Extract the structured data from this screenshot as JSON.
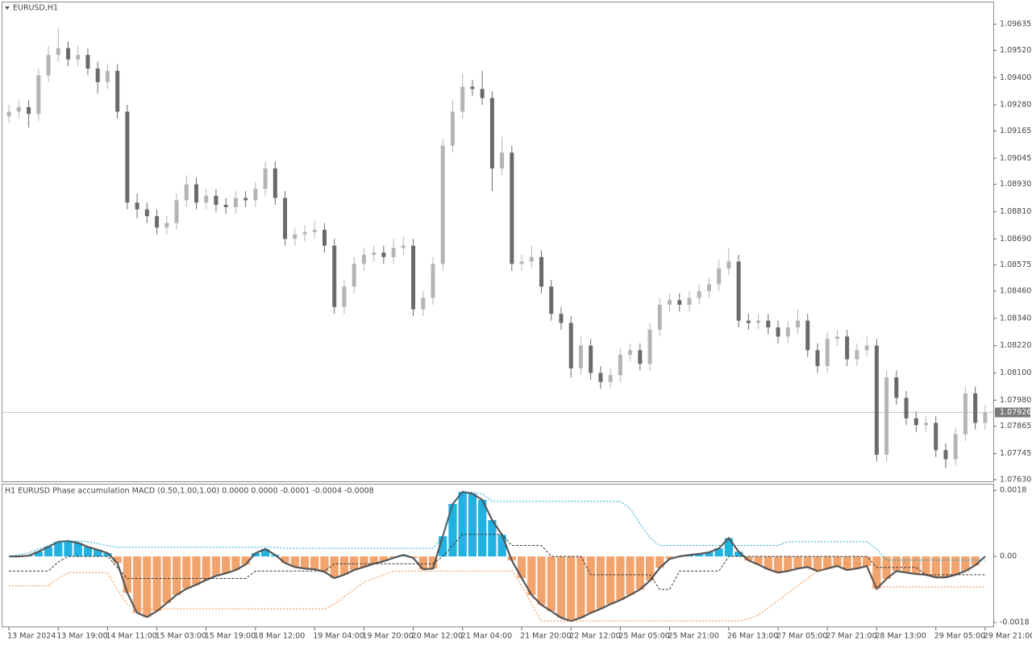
{
  "chart_data": [
    {
      "type": "candlestick",
      "title": "EURUSD,H1",
      "categories": [
        "13 Mar 2024",
        null,
        null,
        null,
        null,
        "13 Mar 19:00",
        null,
        null,
        null,
        null,
        "14 Mar 11:00",
        null,
        null,
        null,
        null,
        "15 Mar 03:00",
        null,
        null,
        null,
        null,
        "15 Mar 19:00",
        null,
        null,
        null,
        null,
        "18 Mar 12:00",
        null,
        null,
        null,
        null,
        null,
        "19 Mar 04:00",
        null,
        null,
        null,
        null,
        "19 Mar 20:00",
        null,
        null,
        null,
        null,
        "20 Mar 12:00",
        null,
        null,
        null,
        null,
        "21 Mar 04:00",
        null,
        null,
        null,
        null,
        null,
        "21 Mar 20:00",
        null,
        null,
        null,
        null,
        "22 Mar 12:00",
        null,
        null,
        null,
        null,
        "25 Mar 05:00",
        null,
        null,
        null,
        null,
        "25 Mar 21:00",
        null,
        null,
        null,
        null,
        null,
        "26 Mar 13:00",
        null,
        null,
        null,
        null,
        "27 Mar 05:00",
        null,
        null,
        null,
        null,
        "27 Mar 21:00",
        null,
        null,
        null,
        null,
        "28 Mar 13:00",
        null,
        null,
        null,
        null,
        null,
        "29 Mar 05:00",
        null,
        null,
        null,
        null,
        "29 Mar 21:00"
      ],
      "open": [
        1.0923,
        1.0925,
        1.0927,
        1.0924,
        1.0941,
        1.095,
        1.0953,
        1.0948,
        1.095,
        1.0944,
        1.0938,
        1.0943,
        1.0925,
        1.0885,
        1.0882,
        1.0879,
        1.0874,
        1.0876,
        1.0886,
        1.0893,
        1.0885,
        1.0888,
        1.0884,
        1.0883,
        1.0887,
        1.0886,
        1.0891,
        1.09,
        1.0887,
        1.0869,
        1.0871,
        1.0872,
        1.0873,
        1.0866,
        1.0839,
        1.0848,
        1.0858,
        1.0862,
        1.0863,
        1.0861,
        1.0865,
        1.0866,
        1.0838,
        1.0843,
        1.0858,
        1.091,
        1.0925,
        1.0936,
        1.0935,
        1.0931,
        1.09,
        1.0907,
        1.0858,
        1.0859,
        1.0861,
        1.0848,
        1.0836,
        1.0832,
        1.0812,
        1.0822,
        1.081,
        1.0806,
        1.0809,
        1.0818,
        1.082,
        1.0814,
        1.0829,
        1.084,
        1.0842,
        1.084,
        1.0843,
        1.0846,
        1.0849,
        1.0856,
        1.0859,
        1.0833,
        1.0832,
        1.0833,
        1.083,
        1.0826,
        1.083,
        1.0833,
        1.082,
        1.0813,
        1.0825,
        1.0826,
        1.0816,
        1.082,
        1.0822,
        1.0774,
        1.0808,
        1.0799,
        1.079,
        1.0787,
        1.0788,
        1.0776,
        1.0772,
        1.0783,
        1.0801,
        1.0788
      ],
      "high": [
        1.0928,
        1.093,
        1.093,
        1.0944,
        1.0954,
        1.0962,
        1.0956,
        1.0954,
        1.0953,
        1.0947,
        1.0946,
        1.0946,
        1.0928,
        1.0889,
        1.0885,
        1.0882,
        1.0879,
        1.0889,
        1.0897,
        1.0896,
        1.0891,
        1.0891,
        1.0887,
        1.089,
        1.089,
        1.0894,
        1.0903,
        1.0903,
        1.089,
        1.0874,
        1.0875,
        1.0877,
        1.0876,
        1.0869,
        1.0851,
        1.0861,
        1.0865,
        1.0866,
        1.0866,
        1.0869,
        1.087,
        1.0869,
        1.0846,
        1.0861,
        1.0913,
        1.093,
        1.0942,
        1.0939,
        1.0943,
        1.0934,
        1.0914,
        1.091,
        1.0862,
        1.0866,
        1.0864,
        1.0851,
        1.0839,
        1.0835,
        1.0826,
        1.0825,
        1.0813,
        1.0812,
        1.0821,
        1.0823,
        1.0823,
        1.0832,
        1.0843,
        1.0845,
        1.0845,
        1.0846,
        1.0849,
        1.0852,
        1.086,
        1.0865,
        1.0862,
        1.0836,
        1.0836,
        1.0836,
        1.0833,
        1.0833,
        1.0838,
        1.0836,
        1.0823,
        1.0828,
        1.0829,
        1.0829,
        1.0823,
        1.0826,
        1.0825,
        1.0811,
        1.0811,
        1.0802,
        1.0793,
        1.0791,
        1.0791,
        1.0779,
        1.0786,
        1.0804,
        1.0804,
        1.0796
      ],
      "low": [
        1.092,
        1.0922,
        1.0918,
        1.0921,
        1.0938,
        1.0947,
        1.0945,
        1.0945,
        1.0941,
        1.0933,
        1.0935,
        1.0922,
        1.0882,
        1.0878,
        1.0876,
        1.0871,
        1.0871,
        1.0873,
        1.0883,
        1.0882,
        1.0882,
        1.0881,
        1.088,
        1.088,
        1.0883,
        1.0883,
        1.0888,
        1.0884,
        1.0866,
        1.0866,
        1.0868,
        1.0869,
        1.0863,
        1.0836,
        1.0836,
        1.0845,
        1.0855,
        1.0859,
        1.0858,
        1.0858,
        1.0862,
        1.0835,
        1.0835,
        1.084,
        1.0855,
        1.0907,
        1.0922,
        1.0932,
        1.0928,
        1.089,
        1.0897,
        1.0855,
        1.0855,
        1.0856,
        1.0845,
        1.0833,
        1.0829,
        1.0808,
        1.0809,
        1.0807,
        1.0803,
        1.0803,
        1.0806,
        1.0815,
        1.0811,
        1.0811,
        1.0826,
        1.0837,
        1.0837,
        1.0837,
        1.084,
        1.0843,
        1.0846,
        1.0853,
        1.083,
        1.0829,
        1.0829,
        1.0827,
        1.0823,
        1.0823,
        1.0827,
        1.0817,
        1.081,
        1.081,
        1.0822,
        1.0813,
        1.0813,
        1.0817,
        1.0771,
        1.0771,
        1.0796,
        1.0787,
        1.0784,
        1.0784,
        1.0773,
        1.0768,
        1.0769,
        1.078,
        1.0785,
        1.0785
      ],
      "close": [
        1.0925,
        1.0927,
        1.0924,
        1.0941,
        1.095,
        1.0953,
        1.0948,
        1.095,
        1.0944,
        1.0938,
        1.0943,
        1.0925,
        1.0885,
        1.0882,
        1.0879,
        1.0874,
        1.0876,
        1.0886,
        1.0893,
        1.0885,
        1.0888,
        1.0884,
        1.0883,
        1.0887,
        1.0886,
        1.0891,
        1.09,
        1.0887,
        1.0869,
        1.0871,
        1.0872,
        1.0873,
        1.0866,
        1.0839,
        1.0848,
        1.0858,
        1.0862,
        1.0863,
        1.0861,
        1.0865,
        1.0866,
        1.0838,
        1.0843,
        1.0858,
        1.091,
        1.0925,
        1.0936,
        1.0935,
        1.0931,
        1.09,
        1.0907,
        1.0858,
        1.0859,
        1.0861,
        1.0848,
        1.0836,
        1.0832,
        1.0812,
        1.0822,
        1.081,
        1.0806,
        1.0809,
        1.0818,
        1.082,
        1.0814,
        1.0829,
        1.084,
        1.0842,
        1.084,
        1.0843,
        1.0846,
        1.0849,
        1.0856,
        1.0859,
        1.0833,
        1.0832,
        1.0833,
        1.083,
        1.0826,
        1.083,
        1.0833,
        1.082,
        1.0813,
        1.0825,
        1.0826,
        1.0816,
        1.082,
        1.0822,
        1.0774,
        1.0808,
        1.0799,
        1.079,
        1.0787,
        1.0788,
        1.0776,
        1.0772,
        1.0783,
        1.0801,
        1.0788,
        1.07926
      ],
      "up_color": "#b4b4b4",
      "down_color": "#6a6a6a",
      "ylim": [
        1.07619,
        1.09731
      ],
      "yticks": [
        1.09635,
        {
          "value": 1.0952,
          "label": "1.09520"
        },
        {
          "value": 1.094,
          "label": "1.09400"
        },
        {
          "value": 1.0928,
          "label": "1.09280"
        },
        1.09165,
        1.09045,
        {
          "value": 1.0893,
          "label": "1.08930"
        },
        {
          "value": 1.0881,
          "label": "1.08810"
        },
        {
          "value": 1.0869,
          "label": "1.08690"
        },
        1.08575,
        {
          "value": 1.0846,
          "label": "1.08460"
        },
        {
          "value": 1.0834,
          "label": "1.08340"
        },
        {
          "value": 1.0822,
          "label": "1.08220"
        },
        {
          "value": 1.081,
          "label": "1.08100"
        },
        {
          "value": 1.0798,
          "label": "1.07980"
        },
        1.07865,
        1.07745,
        {
          "value": 1.0763,
          "label": "1.07630"
        }
      ],
      "grid": false
    },
    {
      "type": "macd",
      "title": "H1 EURUSD Phase accumulation MACD (0.50,1.00,1.00) 0.0000 0.0000 -0.0001 -0.0004 -0.0008",
      "ylim": [
        -0.00193,
        0.00198
      ],
      "yticks": [
        0.0018,
        {
          "value": 0,
          "label": "0.00"
        },
        -0.0018
      ],
      "series": [
        {
          "style": "histogram",
          "color": "#555555",
          "up_color": "#22b2e2",
          "down_color": "#f2a46e",
          "values": [
            0,
            0,
            2e-05,
            0.00013,
            0.00026,
            0.0004,
            0.00042,
            0.00037,
            0.00026,
            0.00018,
            9e-05,
            -0.00018,
            -0.00099,
            -0.00154,
            -0.00165,
            -0.00149,
            -0.00127,
            -0.00105,
            -0.00088,
            -0.00077,
            -0.00064,
            -0.00053,
            -0.00046,
            -0.00037,
            -0.00022,
            9e-05,
            0.0002,
            4e-05,
            -0.00018,
            -0.00029,
            -0.00033,
            -0.00035,
            -0.00042,
            -0.00059,
            -0.0005,
            -0.00037,
            -0.00029,
            -0.0002,
            -0.00013,
            -4e-05,
            4e-05,
            -4e-05,
            -0.00035,
            -0.00033,
            0.00055,
            0.00143,
            0.00176,
            0.00171,
            0.00154,
            0.00099,
            0.00059,
            -0.00011,
            -0.00059,
            -0.00105,
            -0.00132,
            -0.00149,
            -0.00167,
            -0.00176,
            -0.00167,
            -0.00154,
            -0.00143,
            -0.0013,
            -0.00119,
            -0.00105,
            -0.0009,
            -0.00066,
            -0.00031,
            -7e-05,
            0,
            4e-05,
            7e-05,
            0.00011,
            0.00022,
            0.0005,
            0.00013,
            -0.00011,
            -0.00022,
            -0.00035,
            -0.00044,
            -0.0004,
            -0.00033,
            -0.00029,
            -0.0004,
            -0.00033,
            -0.00026,
            -0.00037,
            -0.00033,
            -0.00026,
            -0.00088,
            -0.00061,
            -0.0004,
            -0.00044,
            -0.00048,
            -0.0005,
            -0.00057,
            -0.00057,
            -0.0005,
            -0.0004,
            -0.00024,
            0
          ]
        },
        {
          "style": "dotted",
          "color": "#1aa6d8",
          "values": [
            0,
            5e-05,
            0.0001,
            0.0002,
            0.0003,
            0.0004,
            0.00042,
            0.00042,
            0.0004,
            0.00035,
            0.0003,
            0.00025,
            0.00025,
            0.00025,
            0.00025,
            0.00025,
            0.00025,
            0.00025,
            0.00025,
            0.00025,
            0.00025,
            0.00025,
            0.00025,
            0.00025,
            0.00025,
            0.00025,
            0.00025,
            0.00025,
            0.00022,
            0.00022,
            0.00022,
            0.00022,
            0.00022,
            0.00022,
            0.00022,
            0.00022,
            0.00022,
            0.00022,
            0.00022,
            0.00022,
            0.00022,
            0.00022,
            0.00022,
            0.00022,
            0.00055,
            0.00143,
            0.00176,
            0.00175,
            0.0017,
            0.0015,
            0.0015,
            0.0015,
            0.0015,
            0.0015,
            0.0015,
            0.0015,
            0.0015,
            0.0015,
            0.0015,
            0.0015,
            0.0015,
            0.0015,
            0.0015,
            0.0013,
            0.0009,
            0.0005,
            0.0003,
            0.0003,
            0.0003,
            0.0003,
            0.0003,
            0.0003,
            0.0003,
            0.0003,
            0.0003,
            0.0003,
            0.0003,
            0.0003,
            0.0003,
            0.0004,
            0.0004,
            0.0004,
            0.0004,
            0.0004,
            0.0004,
            0.0004,
            0.0004,
            0.0004,
            0.0002,
            -0.0001,
            -0.0001,
            -0.0001,
            -0.0001,
            -0.0001,
            -0.0001,
            -0.0001,
            -0.0001,
            -0.0001,
            -0.0001,
            -0.0001
          ]
        },
        {
          "style": "dotted",
          "color": "#ee8a40",
          "values": [
            -0.0008,
            -0.0008,
            -0.0008,
            -0.0008,
            -0.0008,
            -0.0006,
            -0.00044,
            -0.00044,
            -0.00044,
            -0.00044,
            -0.00044,
            -0.0009,
            -0.0013,
            -0.00143,
            -0.00143,
            -0.00143,
            -0.00143,
            -0.00143,
            -0.00143,
            -0.00143,
            -0.00143,
            -0.00143,
            -0.00143,
            -0.00143,
            -0.00143,
            -0.00143,
            -0.00143,
            -0.00143,
            -0.00143,
            -0.00143,
            -0.00143,
            -0.00143,
            -0.00143,
            -0.0013,
            -0.0011,
            -0.0009,
            -0.0007,
            -0.0006,
            -0.0005,
            -0.0004,
            -0.0004,
            -0.0004,
            -0.0004,
            -0.0004,
            -0.0004,
            -0.0004,
            -0.0004,
            -0.0004,
            -0.0004,
            -0.0004,
            -0.0004,
            -0.0004,
            -0.0008,
            -0.0013,
            -0.00176,
            -0.00176,
            -0.00176,
            -0.00176,
            -0.00176,
            -0.00176,
            -0.00176,
            -0.00176,
            -0.00176,
            -0.00176,
            -0.00176,
            -0.00176,
            -0.00176,
            -0.00176,
            -0.00176,
            -0.00176,
            -0.00176,
            -0.00176,
            -0.00176,
            -0.00176,
            -0.00176,
            -0.0017,
            -0.0016,
            -0.0014,
            -0.0012,
            -0.001,
            -0.0008,
            -0.0006,
            -0.0004,
            -0.0003,
            -0.0002,
            -0.0002,
            -0.0002,
            -0.0002,
            -0.00083,
            -0.00083,
            -0.00083,
            -0.00083,
            -0.00083,
            -0.00083,
            -0.00083,
            -0.00083,
            -0.00083,
            -0.00083,
            -0.00083,
            -0.00083
          ]
        },
        {
          "style": "dashed",
          "color": "#333333",
          "values": [
            -0.0004,
            -0.0004,
            -0.0004,
            -0.0004,
            -0.0004,
            -0.00015,
            0,
            0,
            0,
            0,
            0,
            -0.0003,
            -0.0006,
            -0.0006,
            -0.0006,
            -0.0006,
            -0.0006,
            -0.0006,
            -0.0006,
            -0.0006,
            -0.0006,
            -0.0006,
            -0.0006,
            -0.0006,
            -0.0006,
            -0.0004,
            -0.0004,
            -0.0004,
            -0.0004,
            -0.0004,
            -0.0004,
            -0.0004,
            -0.0004,
            -0.0002,
            -0.0002,
            -0.0002,
            -0.0002,
            -0.0002,
            -0.0002,
            -0.0002,
            -0.0002,
            -0.0002,
            -0.0002,
            -0.0002,
            0,
            0.0003,
            0.0006,
            0.0006,
            0.0006,
            0.0006,
            0.0006,
            0.0003,
            0.0003,
            0.0003,
            0.0003,
            0,
            0,
            0,
            0,
            -0.0005,
            -0.0005,
            -0.0005,
            -0.0005,
            -0.0005,
            -0.0005,
            -0.0005,
            -0.0009,
            -0.0009,
            -0.0004,
            -0.0004,
            -0.0004,
            -0.0004,
            -0.0004,
            0,
            0,
            0,
            0,
            0,
            0,
            0,
            0,
            0,
            0,
            0,
            0,
            0,
            0,
            0,
            -0.0003,
            -0.0003,
            -0.0003,
            -0.0003,
            -0.0003,
            -0.0005,
            -0.0005,
            -0.0005,
            -0.0005,
            -0.0005,
            -0.0005,
            -0.0005
          ]
        }
      ]
    }
  ]
}
